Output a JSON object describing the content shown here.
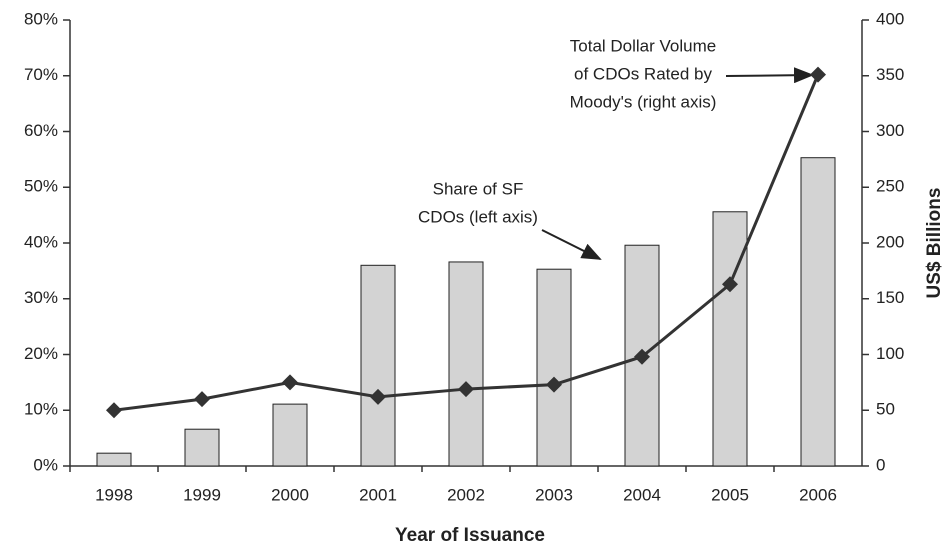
{
  "chart_data": {
    "type": "bar_line",
    "categories": [
      "1998",
      "1999",
      "2000",
      "2001",
      "2002",
      "2003",
      "2004",
      "2005",
      "2006"
    ],
    "series": [
      {
        "type": "bar",
        "axis": "y",
        "color": "#d3d3d3",
        "values": [
          2.3,
          6.6,
          11.1,
          36.0,
          36.6,
          35.3,
          39.6,
          45.6,
          55.3
        ]
      },
      {
        "type": "line",
        "axis": "y2",
        "color": "#333333",
        "values": [
          50,
          60,
          75,
          62,
          69,
          73,
          98,
          163,
          351
        ]
      }
    ],
    "ylim": [
      0,
      80
    ],
    "yticks": [
      {
        "value": 0,
        "label": "0%"
      },
      {
        "value": 10,
        "label": "10%"
      },
      {
        "value": 20,
        "label": "20%"
      },
      {
        "value": 30,
        "label": "30%"
      },
      {
        "value": 40,
        "label": "40%"
      },
      {
        "value": 50,
        "label": "50%"
      },
      {
        "value": 60,
        "label": "60%"
      },
      {
        "value": 70,
        "label": "70%"
      },
      {
        "value": 80,
        "label": "80%"
      }
    ],
    "y2lim": [
      0,
      400
    ],
    "y2ticks": [
      0,
      50,
      100,
      150,
      200,
      250,
      300,
      350,
      400
    ],
    "xlabel": "Year of Issuance",
    "y2label": "US$ Billions",
    "annotations": [
      {
        "lines": [
          "Total Dollar Volume",
          "of CDOs Rated by",
          "Moody's (right axis)"
        ]
      },
      {
        "lines": [
          "Share of SF",
          "CDOs (left axis)"
        ]
      }
    ]
  }
}
